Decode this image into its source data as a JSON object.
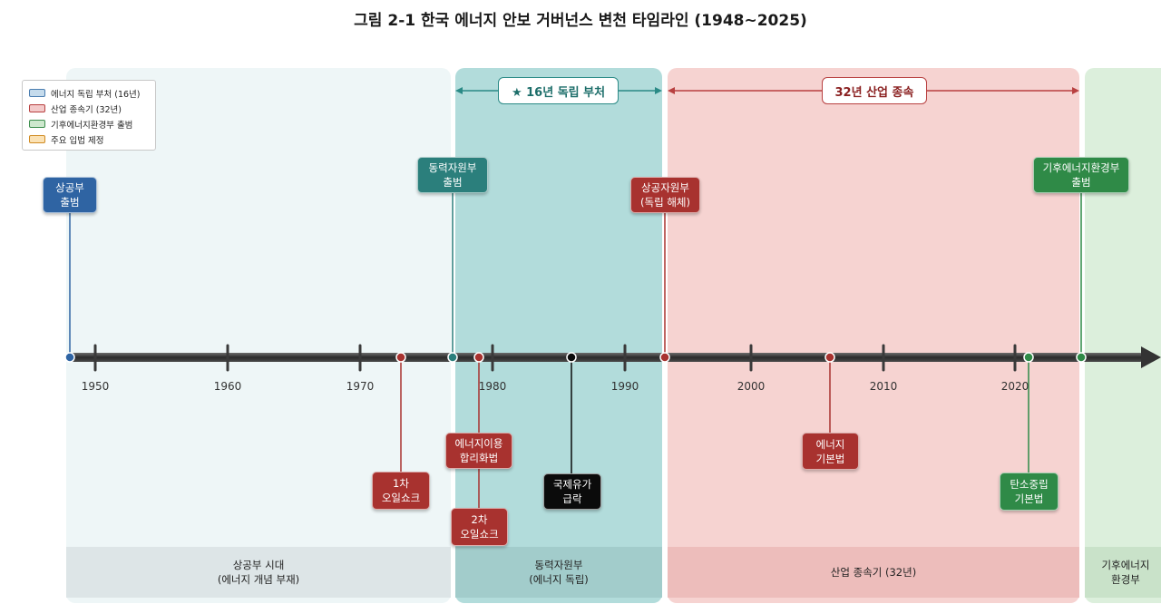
{
  "title": "그림 2-1 한국 에너지 안보 거버넌스 변천 타임라인 (1948~2025)",
  "legend": [
    {
      "label": "에너지 독립 부처 (16년)",
      "color": "#c5dbec"
    },
    {
      "label": "산업 종속기 (32년)",
      "color": "#f3caca"
    },
    {
      "label": "기후에너지환경부 출범",
      "color": "#cde8cd"
    },
    {
      "label": "주요 입법 제정",
      "color": "#fbe2b5"
    }
  ],
  "spans": {
    "independent": "★ 16년 독립 부처",
    "subordinate": "32년 산업 종속"
  },
  "years": [
    "1950",
    "1960",
    "1970",
    "1980",
    "1990",
    "2000",
    "2010",
    "2020"
  ],
  "events_above": [
    {
      "line1": "상공부",
      "line2": "출범"
    },
    {
      "line1": "동력자원부",
      "line2": "출범"
    },
    {
      "line1": "상공자원부",
      "line2": "(독립 해체)"
    },
    {
      "line1": "기후에너지환경부",
      "line2": "출범"
    }
  ],
  "events_below": [
    {
      "line1": "1차",
      "line2": "오일쇼크"
    },
    {
      "line1": "에너지이용",
      "line2": "합리화법"
    },
    {
      "line1": "2차",
      "line2": "오일쇼크"
    },
    {
      "line1": "국제유가",
      "line2": "급락"
    },
    {
      "line1": "에너지",
      "line2": "기본법"
    },
    {
      "line1": "탄소중립",
      "line2": "기본법"
    }
  ],
  "eras": [
    {
      "line1": "상공부 시대",
      "line2": "(에너지 개념 부재)"
    },
    {
      "line1": "동력자원부",
      "line2": "(에너지 독립)"
    },
    {
      "line1": "산업 종속기 (32년)",
      "line2": ""
    },
    {
      "line1": "기후에너지",
      "line2": "환경부"
    }
  ],
  "colors": {
    "blue": "#2f64a3",
    "teal": "#2b7f7c",
    "red": "#a8322f",
    "black": "#0b0b0b",
    "green": "#2f8a47"
  }
}
